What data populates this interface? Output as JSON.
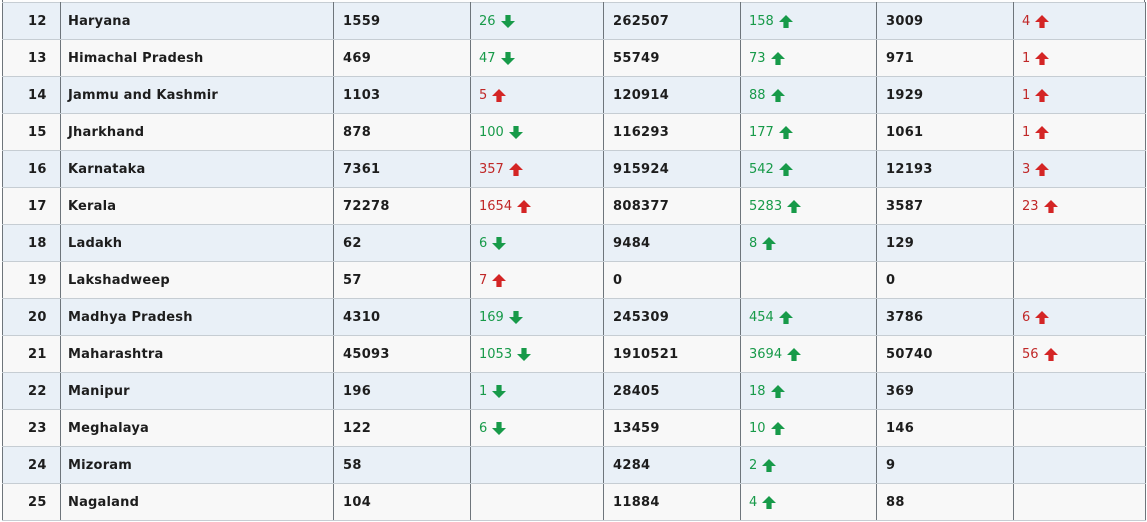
{
  "colors": {
    "green": "#179a49",
    "red": "#d42525",
    "stripe_blue": "#e9f0f7",
    "stripe_white": "#f8f8f8",
    "grid_vertical": "#6e757b",
    "grid_horizontal": "#c6cdd3"
  },
  "table": {
    "rows": [
      {
        "rank": "12",
        "state": "Haryana",
        "active": "1559",
        "active_change": {
          "value": "26",
          "dir": "down",
          "tone": "green"
        },
        "cured": "262507",
        "cured_change": {
          "value": "158",
          "dir": "up",
          "tone": "green"
        },
        "deaths": "3009",
        "deaths_change": {
          "value": "4",
          "dir": "up",
          "tone": "red"
        }
      },
      {
        "rank": "13",
        "state": "Himachal Pradesh",
        "active": "469",
        "active_change": {
          "value": "47",
          "dir": "down",
          "tone": "green"
        },
        "cured": "55749",
        "cured_change": {
          "value": "73",
          "dir": "up",
          "tone": "green"
        },
        "deaths": "971",
        "deaths_change": {
          "value": "1",
          "dir": "up",
          "tone": "red"
        }
      },
      {
        "rank": "14",
        "state": "Jammu and Kashmir",
        "active": "1103",
        "active_change": {
          "value": "5",
          "dir": "up",
          "tone": "red"
        },
        "cured": "120914",
        "cured_change": {
          "value": "88",
          "dir": "up",
          "tone": "green"
        },
        "deaths": "1929",
        "deaths_change": {
          "value": "1",
          "dir": "up",
          "tone": "red"
        }
      },
      {
        "rank": "15",
        "state": "Jharkhand",
        "active": "878",
        "active_change": {
          "value": "100",
          "dir": "down",
          "tone": "green"
        },
        "cured": "116293",
        "cured_change": {
          "value": "177",
          "dir": "up",
          "tone": "green"
        },
        "deaths": "1061",
        "deaths_change": {
          "value": "1",
          "dir": "up",
          "tone": "red"
        }
      },
      {
        "rank": "16",
        "state": "Karnataka",
        "active": "7361",
        "active_change": {
          "value": "357",
          "dir": "up",
          "tone": "red"
        },
        "cured": "915924",
        "cured_change": {
          "value": "542",
          "dir": "up",
          "tone": "green"
        },
        "deaths": "12193",
        "deaths_change": {
          "value": "3",
          "dir": "up",
          "tone": "red"
        }
      },
      {
        "rank": "17",
        "state": "Kerala",
        "active": "72278",
        "active_change": {
          "value": "1654",
          "dir": "up",
          "tone": "red"
        },
        "cured": "808377",
        "cured_change": {
          "value": "5283",
          "dir": "up",
          "tone": "green"
        },
        "deaths": "3587",
        "deaths_change": {
          "value": "23",
          "dir": "up",
          "tone": "red"
        }
      },
      {
        "rank": "18",
        "state": "Ladakh",
        "active": "62",
        "active_change": {
          "value": "6",
          "dir": "down",
          "tone": "green"
        },
        "cured": "9484",
        "cured_change": {
          "value": "8",
          "dir": "up",
          "tone": "green"
        },
        "deaths": "129",
        "deaths_change": null
      },
      {
        "rank": "19",
        "state": "Lakshadweep",
        "active": "57",
        "active_change": {
          "value": "7",
          "dir": "up",
          "tone": "red"
        },
        "cured": "0",
        "cured_change": null,
        "deaths": "0",
        "deaths_change": null
      },
      {
        "rank": "20",
        "state": "Madhya Pradesh",
        "active": "4310",
        "active_change": {
          "value": "169",
          "dir": "down",
          "tone": "green"
        },
        "cured": "245309",
        "cured_change": {
          "value": "454",
          "dir": "up",
          "tone": "green"
        },
        "deaths": "3786",
        "deaths_change": {
          "value": "6",
          "dir": "up",
          "tone": "red"
        }
      },
      {
        "rank": "21",
        "state": "Maharashtra",
        "active": "45093",
        "active_change": {
          "value": "1053",
          "dir": "down",
          "tone": "green"
        },
        "cured": "1910521",
        "cured_change": {
          "value": "3694",
          "dir": "up",
          "tone": "green"
        },
        "deaths": "50740",
        "deaths_change": {
          "value": "56",
          "dir": "up",
          "tone": "red"
        }
      },
      {
        "rank": "22",
        "state": "Manipur",
        "active": "196",
        "active_change": {
          "value": "1",
          "dir": "down",
          "tone": "green"
        },
        "cured": "28405",
        "cured_change": {
          "value": "18",
          "dir": "up",
          "tone": "green"
        },
        "deaths": "369",
        "deaths_change": null
      },
      {
        "rank": "23",
        "state": "Meghalaya",
        "active": "122",
        "active_change": {
          "value": "6",
          "dir": "down",
          "tone": "green"
        },
        "cured": "13459",
        "cured_change": {
          "value": "10",
          "dir": "up",
          "tone": "green"
        },
        "deaths": "146",
        "deaths_change": null
      },
      {
        "rank": "24",
        "state": "Mizoram",
        "active": "58",
        "active_change": null,
        "cured": "4284",
        "cured_change": {
          "value": "2",
          "dir": "up",
          "tone": "green"
        },
        "deaths": "9",
        "deaths_change": null
      },
      {
        "rank": "25",
        "state": "Nagaland",
        "active": "104",
        "active_change": null,
        "cured": "11884",
        "cured_change": {
          "value": "4",
          "dir": "up",
          "tone": "green"
        },
        "deaths": "88",
        "deaths_change": null
      }
    ]
  }
}
